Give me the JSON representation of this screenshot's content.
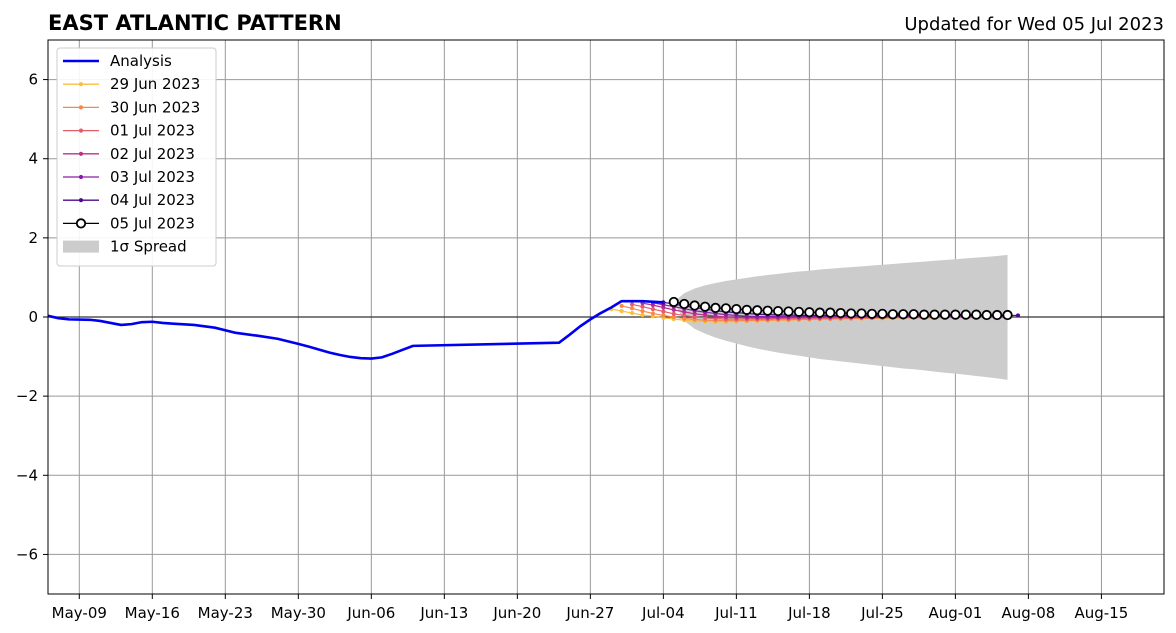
{
  "chart_data": {
    "type": "line",
    "title": "EAST ATLANTIC PATTERN",
    "subtitle": "Updated for Wed 05 Jul 2023",
    "xlabel": "",
    "ylabel": "",
    "xlim": [
      "2023-05-06",
      "2023-08-21"
    ],
    "ylim": [
      -7,
      7
    ],
    "grid": true,
    "legend_position": "top-left",
    "x_ticks": [
      "May-09",
      "May-16",
      "May-23",
      "May-30",
      "Jun-06",
      "Jun-13",
      "Jun-20",
      "Jun-27",
      "Jul-04",
      "Jul-11",
      "Jul-18",
      "Jul-25",
      "Aug-01",
      "Aug-08",
      "Aug-15"
    ],
    "x_tick_dates": [
      "2023-05-09",
      "2023-05-16",
      "2023-05-23",
      "2023-05-30",
      "2023-06-06",
      "2023-06-13",
      "2023-06-20",
      "2023-06-27",
      "2023-07-04",
      "2023-07-11",
      "2023-07-18",
      "2023-07-25",
      "2023-08-01",
      "2023-08-08",
      "2023-08-15"
    ],
    "y_ticks": [
      6,
      4,
      2,
      0,
      -2,
      -4,
      -6
    ],
    "y_tick_labels": [
      "6",
      "4",
      "2",
      "0",
      "−2",
      "−4",
      "−6"
    ],
    "analysis": {
      "name": "Analysis",
      "color": "#0000ee",
      "points": [
        [
          "2023-05-06",
          0.03
        ],
        [
          "2023-05-07",
          -0.03
        ],
        [
          "2023-05-08",
          -0.06
        ],
        [
          "2023-05-10",
          -0.07
        ],
        [
          "2023-05-11",
          -0.1
        ],
        [
          "2023-05-13",
          -0.2
        ],
        [
          "2023-05-14",
          -0.18
        ],
        [
          "2023-05-15",
          -0.13
        ],
        [
          "2023-05-16",
          -0.12
        ],
        [
          "2023-05-17",
          -0.15
        ],
        [
          "2023-05-18",
          -0.17
        ],
        [
          "2023-05-20",
          -0.2
        ],
        [
          "2023-05-22",
          -0.27
        ],
        [
          "2023-05-24",
          -0.4
        ],
        [
          "2023-05-26",
          -0.47
        ],
        [
          "2023-05-28",
          -0.55
        ],
        [
          "2023-05-30",
          -0.68
        ],
        [
          "2023-05-31",
          -0.75
        ],
        [
          "2023-06-02",
          -0.9
        ],
        [
          "2023-06-03",
          -0.96
        ],
        [
          "2023-06-04",
          -1.01
        ],
        [
          "2023-06-05",
          -1.04
        ],
        [
          "2023-06-06",
          -1.05
        ],
        [
          "2023-06-07",
          -1.02
        ],
        [
          "2023-06-08",
          -0.93
        ],
        [
          "2023-06-09",
          -0.83
        ],
        [
          "2023-06-10",
          -0.73
        ],
        [
          "2023-06-24",
          -0.65
        ],
        [
          "2023-06-25",
          -0.45
        ],
        [
          "2023-06-26",
          -0.24
        ],
        [
          "2023-06-27",
          -0.06
        ],
        [
          "2023-06-28",
          0.1
        ],
        [
          "2023-06-29",
          0.24
        ],
        [
          "2023-06-30",
          0.4
        ],
        [
          "2023-07-02",
          0.4
        ],
        [
          "2023-07-04",
          0.37
        ]
      ]
    },
    "forecasts": [
      {
        "name": "29 Jun 2023",
        "color": "#fbbd3c",
        "start": "2023-06-29",
        "values": [
          0.2,
          0.15,
          0.1,
          0.05,
          0.02,
          -0.02,
          -0.05,
          -0.08,
          -0.1,
          -0.11,
          -0.12,
          -0.12,
          -0.11,
          -0.1,
          -0.1,
          -0.09,
          -0.08,
          -0.08,
          -0.07,
          -0.06,
          -0.06,
          -0.05,
          -0.05,
          -0.04,
          -0.04,
          -0.03,
          -0.03,
          -0.03,
          -0.02,
          -0.02,
          -0.02,
          -0.02,
          -0.01,
          -0.01,
          -0.01
        ]
      },
      {
        "name": "30 Jun 2023",
        "color": "#f6894a",
        "start": "2023-06-30",
        "values": [
          0.28,
          0.22,
          0.15,
          0.09,
          0.04,
          0.0,
          -0.04,
          -0.06,
          -0.08,
          -0.09,
          -0.09,
          -0.09,
          -0.09,
          -0.08,
          -0.08,
          -0.07,
          -0.07,
          -0.06,
          -0.06,
          -0.05,
          -0.05,
          -0.04,
          -0.04,
          -0.03,
          -0.03,
          -0.03,
          -0.02,
          -0.02,
          -0.02,
          -0.02,
          -0.01,
          -0.01,
          -0.01,
          -0.01,
          -0.01
        ]
      },
      {
        "name": "01 Jul 2023",
        "color": "#e35d6a",
        "start": "2023-07-01",
        "values": [
          0.32,
          0.26,
          0.2,
          0.14,
          0.08,
          0.04,
          0.0,
          -0.02,
          -0.04,
          -0.05,
          -0.05,
          -0.05,
          -0.05,
          -0.05,
          -0.04,
          -0.04,
          -0.04,
          -0.03,
          -0.03,
          -0.03,
          -0.02,
          -0.02,
          -0.02,
          -0.02,
          -0.01,
          -0.01,
          -0.01,
          -0.01,
          -0.01,
          -0.01,
          0.0,
          0.0,
          0.0,
          0.0,
          0.0
        ]
      },
      {
        "name": "02 Jul 2023",
        "color": "#b83289",
        "start": "2023-07-02",
        "values": [
          0.35,
          0.3,
          0.24,
          0.18,
          0.13,
          0.08,
          0.05,
          0.02,
          0.0,
          -0.01,
          -0.02,
          -0.02,
          -0.02,
          -0.02,
          -0.01,
          -0.01,
          -0.01,
          -0.01,
          0.0,
          0.0,
          0.0,
          0.0,
          0.0,
          0.0,
          0.01,
          0.01,
          0.01,
          0.01,
          0.01,
          0.01,
          0.01,
          0.01,
          0.01,
          0.01,
          0.01
        ]
      },
      {
        "name": "03 Jul 2023",
        "color": "#8a1da6",
        "start": "2023-07-03",
        "values": [
          0.36,
          0.31,
          0.26,
          0.21,
          0.16,
          0.12,
          0.09,
          0.06,
          0.04,
          0.02,
          0.01,
          0.01,
          0.01,
          0.01,
          0.01,
          0.01,
          0.01,
          0.01,
          0.02,
          0.02,
          0.02,
          0.02,
          0.02,
          0.02,
          0.02,
          0.02,
          0.02,
          0.02,
          0.02,
          0.02,
          0.02,
          0.02,
          0.02,
          0.02,
          0.02
        ]
      },
      {
        "name": "04 Jul 2023",
        "color": "#4a0c8a",
        "start": "2023-07-04",
        "values": [
          0.37,
          0.33,
          0.28,
          0.24,
          0.2,
          0.16,
          0.13,
          0.11,
          0.09,
          0.07,
          0.06,
          0.05,
          0.05,
          0.04,
          0.04,
          0.04,
          0.04,
          0.04,
          0.04,
          0.04,
          0.04,
          0.04,
          0.04,
          0.04,
          0.04,
          0.04,
          0.04,
          0.04,
          0.04,
          0.04,
          0.04,
          0.04,
          0.04,
          0.04,
          0.04
        ]
      },
      {
        "name": "05 Jul 2023",
        "color": "#000000",
        "start": "2023-07-05",
        "marker": "open-circle",
        "values": [
          0.38,
          0.33,
          0.29,
          0.26,
          0.23,
          0.22,
          0.2,
          0.18,
          0.17,
          0.16,
          0.15,
          0.14,
          0.13,
          0.12,
          0.11,
          0.11,
          0.1,
          0.09,
          0.09,
          0.08,
          0.08,
          0.07,
          0.07,
          0.07,
          0.06,
          0.06,
          0.06,
          0.06,
          0.06,
          0.06,
          0.05,
          0.05,
          0.05
        ]
      }
    ],
    "spread": {
      "name": "1σ Spread",
      "color": "#cccccc",
      "start": "2023-07-05",
      "upper": [
        0.38,
        0.6,
        0.72,
        0.8,
        0.86,
        0.91,
        0.95,
        0.99,
        1.03,
        1.06,
        1.09,
        1.12,
        1.15,
        1.17,
        1.2,
        1.22,
        1.24,
        1.26,
        1.28,
        1.3,
        1.32,
        1.34,
        1.36,
        1.38,
        1.4,
        1.42,
        1.44,
        1.46,
        1.48,
        1.5,
        1.52,
        1.54,
        1.57
      ],
      "lower": [
        0.38,
        -0.1,
        -0.3,
        -0.42,
        -0.52,
        -0.6,
        -0.67,
        -0.74,
        -0.8,
        -0.85,
        -0.9,
        -0.94,
        -0.98,
        -1.02,
        -1.06,
        -1.09,
        -1.12,
        -1.15,
        -1.18,
        -1.21,
        -1.24,
        -1.27,
        -1.3,
        -1.32,
        -1.35,
        -1.38,
        -1.41,
        -1.43,
        -1.46,
        -1.49,
        -1.52,
        -1.55,
        -1.59
      ]
    },
    "legend": [
      "Analysis",
      "29 Jun 2023",
      "30 Jun 2023",
      "01 Jul 2023",
      "02 Jul 2023",
      "03 Jul 2023",
      "04 Jul 2023",
      "05 Jul 2023",
      "1σ Spread"
    ]
  }
}
